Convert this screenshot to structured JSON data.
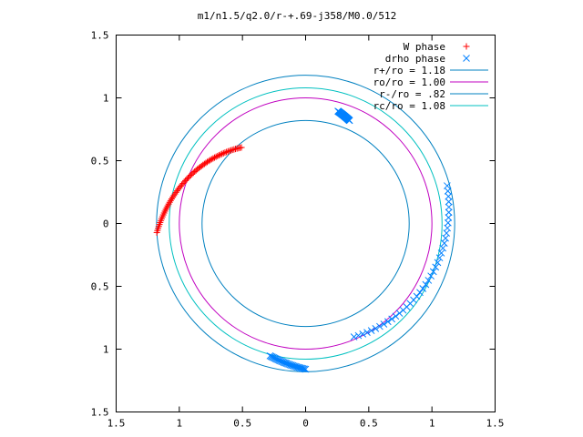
{
  "chart_data": {
    "type": "scatter",
    "title": "m1/n1.5/q2.0/r-+.69-j358/M0.0/512",
    "xlim": [
      -1.5,
      1.5
    ],
    "ylim": [
      -1.5,
      1.5
    ],
    "x_ticks": [
      {
        "value": -1.5,
        "label": "1.5"
      },
      {
        "value": -1.0,
        "label": "1"
      },
      {
        "value": -0.5,
        "label": "0.5"
      },
      {
        "value": 0.0,
        "label": "0"
      },
      {
        "value": 0.5,
        "label": "0.5"
      },
      {
        "value": 1.0,
        "label": "1"
      },
      {
        "value": 1.5,
        "label": "1.5"
      }
    ],
    "y_ticks": [
      {
        "value": 1.5,
        "label": "1.5"
      },
      {
        "value": 1.0,
        "label": "1"
      },
      {
        "value": 0.5,
        "label": "0.5"
      },
      {
        "value": 0.0,
        "label": "0"
      },
      {
        "value": -0.5,
        "label": "0.5"
      },
      {
        "value": -1.0,
        "label": "1"
      },
      {
        "value": -1.5,
        "label": "1.5"
      }
    ],
    "grid": false,
    "legend_position": "top-right",
    "series": [
      {
        "name": "W phase",
        "kind": "points",
        "marker": "plus",
        "color": "#ff0000",
        "arc": {
          "r_start": 1.18,
          "r_end": 0.79,
          "theta_start_deg": 183.5,
          "theta_end_deg": 130,
          "count": 70
        }
      },
      {
        "name": "drho phase",
        "kind": "points",
        "marker": "cross",
        "color": "#0080ff",
        "arc": {
          "r_start": 0.98,
          "r_end": 1.16,
          "theta_start_deg": 293,
          "theta_end_deg": 375,
          "count": 40
        },
        "dense_clusters": [
          {
            "r_start": 0.89,
            "r_end": 0.93,
            "theta_start_deg": 67,
            "theta_end_deg": 74,
            "count": 25
          },
          {
            "r_start": 1.09,
            "r_end": 1.16,
            "theta_start_deg": 255,
            "theta_end_deg": 270,
            "count": 30
          }
        ]
      },
      {
        "name": "r+/ro = 1.18",
        "kind": "circle",
        "radius": 1.18,
        "color": "#0080c0"
      },
      {
        "name": "ro/ro = 1.00",
        "kind": "circle",
        "radius": 1.0,
        "color": "#c000c0"
      },
      {
        "name": "r-/ro = .82",
        "kind": "circle",
        "radius": 0.82,
        "color": "#0080c0"
      },
      {
        "name": "rc/ro = 1.08",
        "kind": "circle",
        "radius": 1.08,
        "color": "#00c0c0"
      }
    ]
  }
}
